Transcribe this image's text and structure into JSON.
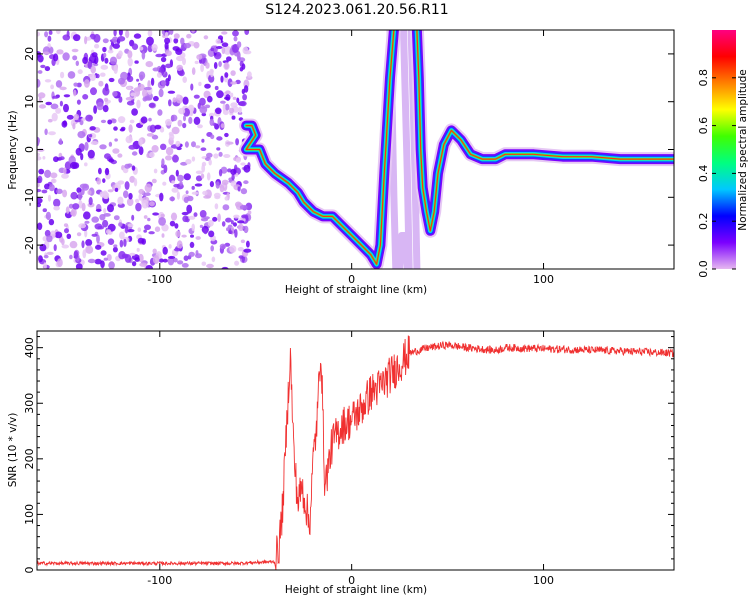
{
  "title": "S124.2023.061.20.56.R11",
  "chart_data": [
    {
      "type": "heatmap",
      "xlabel": "Height of straight line (km)",
      "ylabel": "Frequency (Hz)",
      "xlim": [
        -164,
        168
      ],
      "ylim": [
        -25,
        25
      ],
      "xticks": [
        -100,
        0,
        100
      ],
      "yticks": [
        -20,
        -10,
        0,
        10,
        20
      ],
      "noise_region_x": [
        -164,
        -53
      ],
      "doppler_track": [
        {
          "x": -55,
          "y": 5
        },
        {
          "x": -52,
          "y": 5
        },
        {
          "x": -50,
          "y": 3
        },
        {
          "x": -55,
          "y": 0
        },
        {
          "x": -48,
          "y": 0
        },
        {
          "x": -45,
          "y": -3
        },
        {
          "x": -40,
          "y": -5
        },
        {
          "x": -33,
          "y": -7
        },
        {
          "x": -28,
          "y": -9
        },
        {
          "x": -25,
          "y": -11
        },
        {
          "x": -20,
          "y": -13
        },
        {
          "x": -15,
          "y": -14
        },
        {
          "x": -10,
          "y": -14
        },
        {
          "x": -5,
          "y": -16
        },
        {
          "x": 0,
          "y": -18
        },
        {
          "x": 5,
          "y": -20
        },
        {
          "x": 10,
          "y": -22
        },
        {
          "x": 13,
          "y": -24
        },
        {
          "x": 15,
          "y": -20
        },
        {
          "x": 17,
          "y": -5
        },
        {
          "x": 20,
          "y": 15
        },
        {
          "x": 22,
          "y": 25
        }
      ],
      "upper_track": [
        {
          "x": 34,
          "y": 25
        },
        {
          "x": 35,
          "y": 15
        },
        {
          "x": 36,
          "y": 0
        },
        {
          "x": 37,
          "y": -8
        },
        {
          "x": 39,
          "y": -13
        },
        {
          "x": 41,
          "y": -17
        },
        {
          "x": 43,
          "y": -13
        },
        {
          "x": 45,
          "y": -5
        },
        {
          "x": 48,
          "y": 1
        },
        {
          "x": 52,
          "y": 4
        },
        {
          "x": 57,
          "y": 2
        },
        {
          "x": 62,
          "y": -1
        },
        {
          "x": 68,
          "y": -2
        },
        {
          "x": 75,
          "y": -2
        },
        {
          "x": 80,
          "y": -1
        },
        {
          "x": 88,
          "y": -1
        },
        {
          "x": 95,
          "y": -1
        },
        {
          "x": 110,
          "y": -1.5
        },
        {
          "x": 125,
          "y": -1.5
        },
        {
          "x": 140,
          "y": -2
        },
        {
          "x": 155,
          "y": -2
        },
        {
          "x": 168,
          "y": -2
        }
      ],
      "ghost_tracks": [
        [
          {
            "x": 20,
            "y": 25
          },
          {
            "x": 21,
            "y": 10
          },
          {
            "x": 22,
            "y": -10
          },
          {
            "x": 23,
            "y": -25
          }
        ],
        [
          {
            "x": 25,
            "y": -25
          },
          {
            "x": 26,
            "y": -18
          },
          {
            "x": 28,
            "y": -18
          },
          {
            "x": 29,
            "y": -25
          }
        ],
        [
          {
            "x": 27,
            "y": 25
          },
          {
            "x": 28,
            "y": 10
          },
          {
            "x": 29,
            "y": -5
          },
          {
            "x": 30,
            "y": -25
          }
        ],
        [
          {
            "x": 31,
            "y": 25
          },
          {
            "x": 32,
            "y": 10
          },
          {
            "x": 33,
            "y": -5
          },
          {
            "x": 34,
            "y": -25
          }
        ]
      ],
      "colorbar": {
        "label": "Normalized spectral amplitude",
        "range": [
          0,
          1
        ],
        "ticks": [
          "0.0",
          "0.2",
          "0.4",
          "0.6",
          "0.8"
        ],
        "colors": [
          "#e6b8f0",
          "#7b00ff",
          "#0000ff",
          "#00c8ff",
          "#00ff80",
          "#40ff00",
          "#ffff00",
          "#ff8000",
          "#ff0000",
          "#ff0080"
        ]
      }
    },
    {
      "type": "line",
      "xlabel": "Height of straight line (km)",
      "ylabel": "SNR (10 * v/v)",
      "xlim": [
        -164,
        168
      ],
      "ylim": [
        0,
        430
      ],
      "xticks": [
        -100,
        0,
        100
      ],
      "yticks": [
        0,
        100,
        200,
        300,
        400
      ],
      "color": "#f03030",
      "points": [
        {
          "x": -164,
          "y": 12
        },
        {
          "x": -140,
          "y": 12
        },
        {
          "x": -100,
          "y": 12
        },
        {
          "x": -60,
          "y": 12
        },
        {
          "x": -40,
          "y": 15
        },
        {
          "x": -38,
          "y": 40
        },
        {
          "x": -36,
          "y": 110
        },
        {
          "x": -34,
          "y": 250
        },
        {
          "x": -32,
          "y": 390
        },
        {
          "x": -30,
          "y": 200
        },
        {
          "x": -28,
          "y": 120
        },
        {
          "x": -26,
          "y": 150
        },
        {
          "x": -24,
          "y": 120
        },
        {
          "x": -22,
          "y": 80
        },
        {
          "x": -20,
          "y": 200
        },
        {
          "x": -18,
          "y": 270
        },
        {
          "x": -16,
          "y": 405
        },
        {
          "x": -14,
          "y": 150
        },
        {
          "x": -10,
          "y": 230
        },
        {
          "x": -5,
          "y": 260
        },
        {
          "x": 0,
          "y": 270
        },
        {
          "x": 5,
          "y": 290
        },
        {
          "x": 10,
          "y": 320
        },
        {
          "x": 15,
          "y": 330
        },
        {
          "x": 20,
          "y": 350
        },
        {
          "x": 25,
          "y": 370
        },
        {
          "x": 30,
          "y": 390
        },
        {
          "x": 40,
          "y": 400
        },
        {
          "x": 50,
          "y": 405
        },
        {
          "x": 60,
          "y": 400
        },
        {
          "x": 75,
          "y": 395
        },
        {
          "x": 80,
          "y": 400
        },
        {
          "x": 100,
          "y": 398
        },
        {
          "x": 120,
          "y": 396
        },
        {
          "x": 140,
          "y": 394
        },
        {
          "x": 168,
          "y": 390
        }
      ]
    }
  ]
}
